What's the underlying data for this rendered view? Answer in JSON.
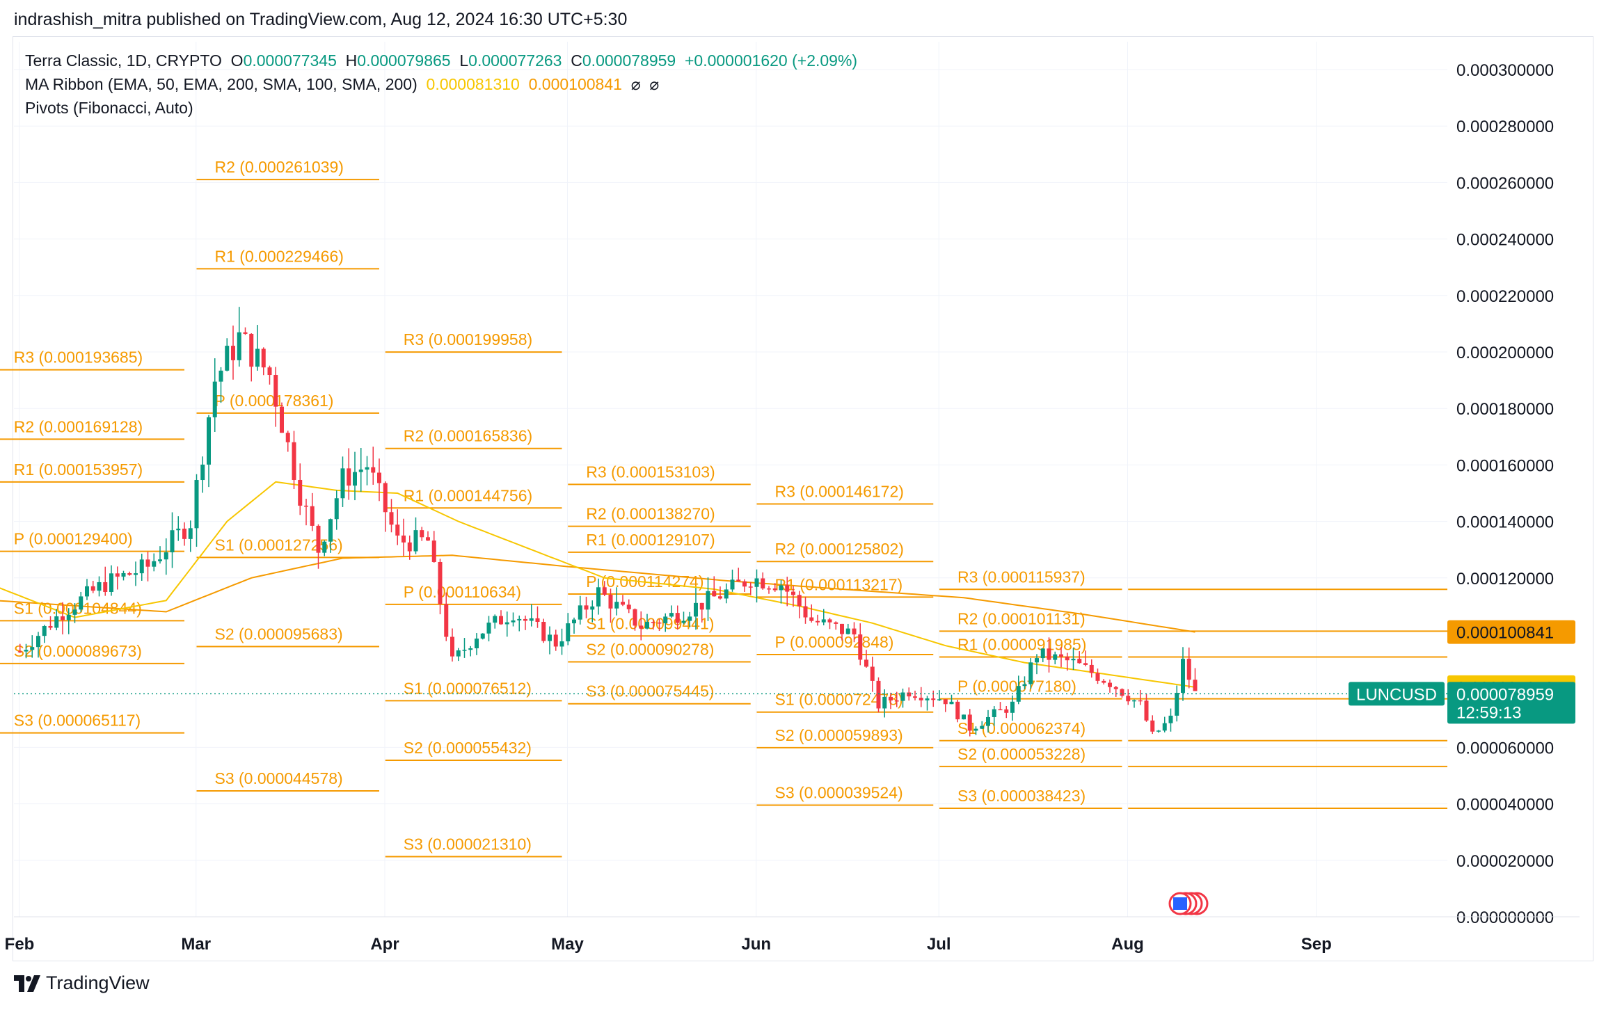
{
  "header": {
    "publisher_line": "indrashish_mitra published on TradingView.com, Aug 12, 2024 16:30 UTC+5:30"
  },
  "legend": {
    "symbol": "Terra Classic, 1D, CRYPTO",
    "o_label": "O",
    "o_value": "0.000077345",
    "h_label": "H",
    "h_value": "0.000079865",
    "l_label": "L",
    "l_value": "0.000077263",
    "c_label": "C",
    "c_value": "0.000078959",
    "change": "+0.000001620 (+2.09%)",
    "ma_ribbon": "MA Ribbon (EMA, 50, EMA, 200, SMA, 100, SMA, 200)",
    "ma_value_1": "0.000081310",
    "ma_value_2": "0.000100841",
    "ma_na_1": "⌀",
    "ma_na_2": "⌀",
    "pivots": "Pivots (Fibonacci, Auto)"
  },
  "footer": {
    "brand": "TradingView"
  },
  "colors": {
    "up": "#089981",
    "down": "#f23645",
    "pivot": "#f59a00",
    "ema50": "#f7c600",
    "ema200": "#f59a00",
    "grid": "#f0f3fa",
    "axis_text": "#131722"
  },
  "chart_data": {
    "type": "candlestick",
    "title": "Terra Classic, 1D, CRYPTO",
    "xlabel": "",
    "ylabel": "",
    "x_ticks": [
      "Feb",
      "Mar",
      "Apr",
      "May",
      "Jun",
      "Jul",
      "Aug",
      "Sep"
    ],
    "y_ticks": [
      "0.000300000",
      "0.000280000",
      "0.000260000",
      "0.000240000",
      "0.000220000",
      "0.000200000",
      "0.000180000",
      "0.000160000",
      "0.000140000",
      "0.000120000",
      "0.000060000",
      "0.000040000",
      "0.000020000",
      "0.000000000"
    ],
    "ylim": [
      0,
      0.0003
    ],
    "grid": true,
    "price_labels": [
      {
        "text": "0.000100841",
        "value": 0.000100841,
        "color": "#f59a00",
        "text_color": "#131722"
      },
      {
        "text": "0.000081310",
        "value": 8.131e-05,
        "color": "#f7c600",
        "text_color": "#131722"
      },
      {
        "text": "0.000078959",
        "sub": "12:59:13",
        "value": 7.8959e-05,
        "color": "#089981",
        "text_color": "#ffffff",
        "tag": "LUNCUSD"
      }
    ],
    "last_close": 7.8959e-05,
    "candle_anchors": [
      [
        "2024-02-01",
        9.4e-05
      ],
      [
        "2024-02-08",
        0.000108
      ],
      [
        "2024-02-15",
        0.000118
      ],
      [
        "2024-02-22",
        0.000124
      ],
      [
        "2024-02-29",
        0.00014
      ],
      [
        "2024-03-04",
        0.00019
      ],
      [
        "2024-03-08",
        0.000205
      ],
      [
        "2024-03-13",
        0.000192
      ],
      [
        "2024-03-18",
        0.00015
      ],
      [
        "2024-03-21",
        0.00013
      ],
      [
        "2024-03-25",
        0.000155
      ],
      [
        "2024-03-29",
        0.00016
      ],
      [
        "2024-04-03",
        0.000133
      ],
      [
        "2024-04-08",
        0.000133
      ],
      [
        "2024-04-12",
        9e-05
      ],
      [
        "2024-04-16",
        0.0001
      ],
      [
        "2024-04-22",
        0.000108
      ],
      [
        "2024-04-29",
        9.7e-05
      ],
      [
        "2024-05-06",
        0.000115
      ],
      [
        "2024-05-13",
        0.000103
      ],
      [
        "2024-05-20",
        0.000108
      ],
      [
        "2024-05-27",
        0.000115
      ],
      [
        "2024-05-31",
        0.00012
      ],
      [
        "2024-06-05",
        0.000118
      ],
      [
        "2024-06-10",
        0.000105
      ],
      [
        "2024-06-17",
        0.0001
      ],
      [
        "2024-06-21",
        7.5e-05
      ],
      [
        "2024-06-26",
        8e-05
      ],
      [
        "2024-07-02",
        7.7e-05
      ],
      [
        "2024-07-06",
        6.7e-05
      ],
      [
        "2024-07-13",
        7.5e-05
      ],
      [
        "2024-07-17",
        9.3e-05
      ],
      [
        "2024-07-23",
        9e-05
      ],
      [
        "2024-07-29",
        8.3e-05
      ],
      [
        "2024-08-03",
        7.5e-05
      ],
      [
        "2024-08-05",
        6.4e-05
      ],
      [
        "2024-08-08",
        7e-05
      ],
      [
        "2024-08-10",
        9e-05
      ],
      [
        "2024-08-12",
        7.8959e-05
      ]
    ],
    "ma_anchors": {
      "ema50": [
        [
          "2024-01-28",
          0.000117
        ],
        [
          "2024-02-10",
          0.000106
        ],
        [
          "2024-02-25",
          0.000112
        ],
        [
          "2024-03-06",
          0.00014
        ],
        [
          "2024-03-14",
          0.000154
        ],
        [
          "2024-03-24",
          0.000151
        ],
        [
          "2024-04-03",
          0.00015
        ],
        [
          "2024-04-13",
          0.00014
        ],
        [
          "2024-04-25",
          0.00013
        ],
        [
          "2024-05-07",
          0.00012
        ],
        [
          "2024-05-25",
          0.000116
        ],
        [
          "2024-06-08",
          0.00011
        ],
        [
          "2024-06-20",
          0.000104
        ],
        [
          "2024-07-02",
          9.6e-05
        ],
        [
          "2024-07-15",
          9e-05
        ],
        [
          "2024-07-28",
          8.6e-05
        ],
        [
          "2024-08-12",
          8.131e-05
        ]
      ],
      "ema200": [
        [
          "2024-01-28",
          0.000112
        ],
        [
          "2024-02-25",
          0.000108
        ],
        [
          "2024-03-10",
          0.00012
        ],
        [
          "2024-03-25",
          0.000127
        ],
        [
          "2024-04-12",
          0.000128
        ],
        [
          "2024-05-01",
          0.000124
        ],
        [
          "2024-05-27",
          0.000119
        ],
        [
          "2024-06-15",
          0.000116
        ],
        [
          "2024-07-05",
          0.000113
        ],
        [
          "2024-07-25",
          0.000107
        ],
        [
          "2024-08-12",
          0.000100841
        ]
      ]
    },
    "pivots": [
      {
        "start": "2024-01-28",
        "end": "2024-02-28",
        "levels": [
          {
            "name": "R3",
            "value": 0.000193685
          },
          {
            "name": "R2",
            "value": 0.000169128
          },
          {
            "name": "R1",
            "value": 0.000153957
          },
          {
            "name": "P",
            "value": 0.0001294
          },
          {
            "name": "S1",
            "value": 0.000104844
          },
          {
            "name": "S2",
            "value": 8.9673e-05
          },
          {
            "name": "S3",
            "value": 6.5117e-05
          }
        ]
      },
      {
        "start": "2024-03-01",
        "end": "2024-03-31",
        "levels": [
          {
            "name": "R2",
            "value": 0.000261039
          },
          {
            "name": "R1",
            "value": 0.000229466
          },
          {
            "name": "P",
            "value": 0.000178361
          },
          {
            "name": "S1",
            "value": 0.000127256
          },
          {
            "name": "S2",
            "value": 9.5683e-05
          },
          {
            "name": "S3",
            "value": 4.4578e-05
          }
        ]
      },
      {
        "start": "2024-04-01",
        "end": "2024-04-30",
        "levels": [
          {
            "name": "R3",
            "value": 0.000199958
          },
          {
            "name": "R2",
            "value": 0.000165836
          },
          {
            "name": "R1",
            "value": 0.000144756
          },
          {
            "name": "P",
            "value": 0.000110634
          },
          {
            "name": "S1",
            "value": 7.6512e-05
          },
          {
            "name": "S2",
            "value": 5.5432e-05
          },
          {
            "name": "S3",
            "value": 2.131e-05
          }
        ]
      },
      {
        "start": "2024-05-01",
        "end": "2024-05-31",
        "levels": [
          {
            "name": "R3",
            "value": 0.000153103
          },
          {
            "name": "R2",
            "value": 0.00013827
          },
          {
            "name": "R1",
            "value": 0.000129107
          },
          {
            "name": "P",
            "value": 0.000114274
          },
          {
            "name": "S1",
            "value": 9.9441e-05
          },
          {
            "name": "S2",
            "value": 9.0278e-05
          },
          {
            "name": "S3",
            "value": 7.5445e-05
          }
        ]
      },
      {
        "start": "2024-06-01",
        "end": "2024-06-30",
        "levels": [
          {
            "name": "R3",
            "value": 0.000146172
          },
          {
            "name": "R2",
            "value": 0.000125802
          },
          {
            "name": "R1",
            "value": 0.000113217
          },
          {
            "name": "P",
            "value": 9.2848e-05
          },
          {
            "name": "S1",
            "value": 7.2478e-05
          },
          {
            "name": "S2",
            "value": 5.9893e-05
          },
          {
            "name": "S3",
            "value": 3.9524e-05
          }
        ]
      },
      {
        "start": "2024-07-01",
        "end": "2024-07-31",
        "levels": [
          {
            "name": "R3",
            "value": 0.000115937
          },
          {
            "name": "R2",
            "value": 0.000101131
          },
          {
            "name": "R1",
            "value": 9.1985e-05
          },
          {
            "name": "P",
            "value": 7.718e-05
          },
          {
            "name": "S1",
            "value": 6.2374e-05
          },
          {
            "name": "S2",
            "value": 5.3228e-05
          },
          {
            "name": "S3",
            "value": 3.8423e-05
          }
        ]
      }
    ],
    "august_levels": [
      0.000115937,
      0.000101131,
      9.1985e-05,
      7.718e-05,
      6.2374e-05,
      5.3228e-05,
      3.8423e-05
    ]
  }
}
